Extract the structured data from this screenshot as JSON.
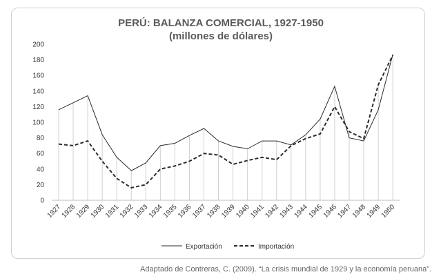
{
  "chart_data": {
    "type": "line",
    "title": "PERÚ: BALANZA COMERCIAL, 1927-1950",
    "subtitle": "(millones de dólares)",
    "categories": [
      "1927",
      "1928",
      "1929",
      "1930",
      "1931",
      "1932",
      "1933",
      "1934",
      "1935",
      "1936",
      "1937",
      "1938",
      "1939",
      "1940",
      "1941",
      "1942",
      "1943",
      "1944",
      "1945",
      "1946",
      "1947",
      "1948",
      "1949",
      "1950"
    ],
    "series": [
      {
        "name": "Exportación",
        "style": "solid",
        "values": [
          116,
          125,
          134,
          84,
          55,
          38,
          48,
          70,
          73,
          83,
          92,
          76,
          69,
          66,
          76,
          76,
          71,
          84,
          104,
          146,
          80,
          76,
          116,
          187
        ]
      },
      {
        "name": "Importación",
        "style": "dashed",
        "values": [
          72,
          70,
          76,
          50,
          28,
          16,
          20,
          40,
          44,
          50,
          60,
          58,
          46,
          51,
          55,
          52,
          70,
          79,
          85,
          120,
          88,
          79,
          148,
          186
        ]
      }
    ],
    "ylim": [
      0,
      200
    ],
    "yticks": [
      0,
      20,
      40,
      60,
      80,
      100,
      120,
      140,
      160,
      180,
      200
    ],
    "xlabel": "",
    "ylabel": "",
    "grid": "vertical drop lines per year",
    "legend": "bottom",
    "colors": {
      "line": "#2b2b2b",
      "droplines": "#d0d0d0"
    }
  },
  "source": "Adaptado de Contreras, C. (2009). “La crisis mundial de 1929 y la economía peruana”."
}
